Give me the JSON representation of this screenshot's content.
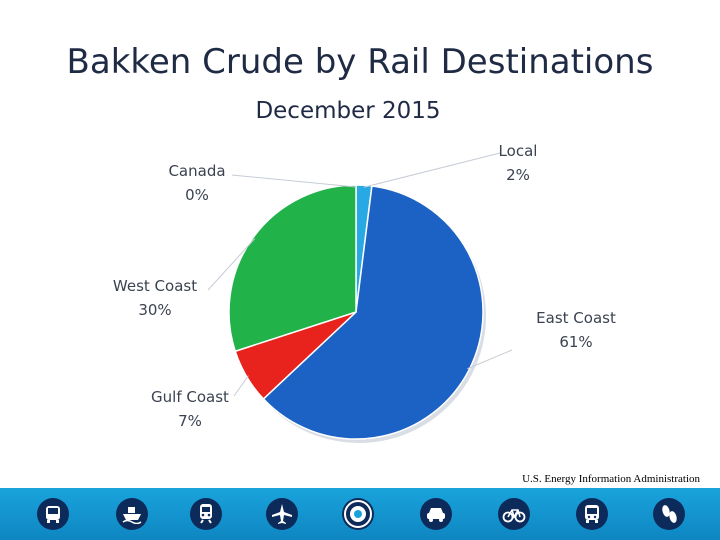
{
  "chart_data": {
    "type": "pie",
    "title": "Bakken Crude by Rail Destinations",
    "subtitle": "December 2015",
    "slices": [
      {
        "label": "Local",
        "value": 2,
        "value_label": "2%",
        "color": "#29a9e4"
      },
      {
        "label": "East Coast",
        "value": 61,
        "value_label": "61%",
        "color": "#1b62c4"
      },
      {
        "label": "Gulf Coast",
        "value": 7,
        "value_label": "7%",
        "color": "#e8221c"
      },
      {
        "label": "West Coast",
        "value": 30,
        "value_label": "30%",
        "color": "#21b24a"
      },
      {
        "label": "Canada",
        "value": 0,
        "value_label": "0%",
        "color": "#8a8a8a"
      }
    ]
  },
  "source": "U.S. Energy Information Administration",
  "footer_icons": [
    "bus-icon",
    "ship-icon",
    "train-icon",
    "airplane-icon",
    "dot-seal-icon",
    "car-icon",
    "bicycle-icon",
    "transit-bus-icon",
    "footsteps-icon"
  ]
}
